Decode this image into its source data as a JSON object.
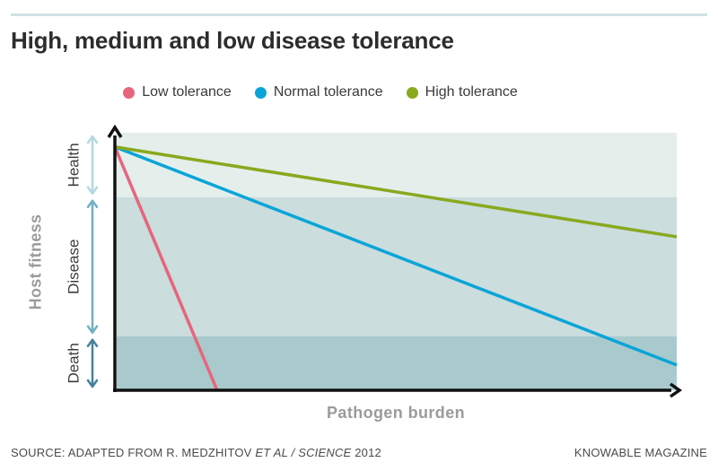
{
  "chart_data": {
    "type": "line",
    "title": "High, medium and low disease tolerance",
    "xlabel": "Pathogen burden",
    "ylabel": "Host fitness",
    "x_axis": {
      "min": 0,
      "max": 10,
      "ticks": "none",
      "note": "conceptual axis, no tick labels"
    },
    "y_axis": {
      "min": 0,
      "max": 10,
      "ticks": "none",
      "note": "conceptual axis, no tick labels"
    },
    "grid": false,
    "legend_position": "top",
    "bands": [
      {
        "label": "Health",
        "y_from": 7.5,
        "y_to": 10,
        "fill": "#e4efec",
        "arrow_color": "#b5d8de"
      },
      {
        "label": "Disease",
        "y_from": 2.1,
        "y_to": 7.5,
        "fill": "#cbdddd",
        "arrow_color": "#72b1c0"
      },
      {
        "label": "Death",
        "y_from": 0,
        "y_to": 2.1,
        "fill": "#a9cacc",
        "arrow_color": "#46819b"
      }
    ],
    "series": [
      {
        "name": "Low tolerance",
        "color": "#e7657c",
        "points": [
          [
            0,
            9.45
          ],
          [
            1.82,
            0
          ]
        ]
      },
      {
        "name": "Normal tolerance",
        "color": "#0aa5d8",
        "points": [
          [
            0,
            9.45
          ],
          [
            10,
            0.98
          ]
        ]
      },
      {
        "name": "High tolerance",
        "color": "#88a91e",
        "points": [
          [
            0,
            9.45
          ],
          [
            10,
            5.96
          ]
        ]
      }
    ]
  },
  "footer": {
    "source_prefix": "SOURCE: ADAPTED FROM R. MEDZHITOV ",
    "source_italic": "ET AL / SCIENCE",
    "source_suffix": " 2012",
    "brand": "KNOWABLE MAGAZINE"
  },
  "colors": {
    "axis": "#111111",
    "top_rule": "#cfe2e6",
    "title_text": "#2d2d2d",
    "muted_label": "#9b9b9b",
    "band_label": "#3d3d3d",
    "legend_text": "#3a3a3a",
    "footer_text": "#4b4b4b"
  }
}
